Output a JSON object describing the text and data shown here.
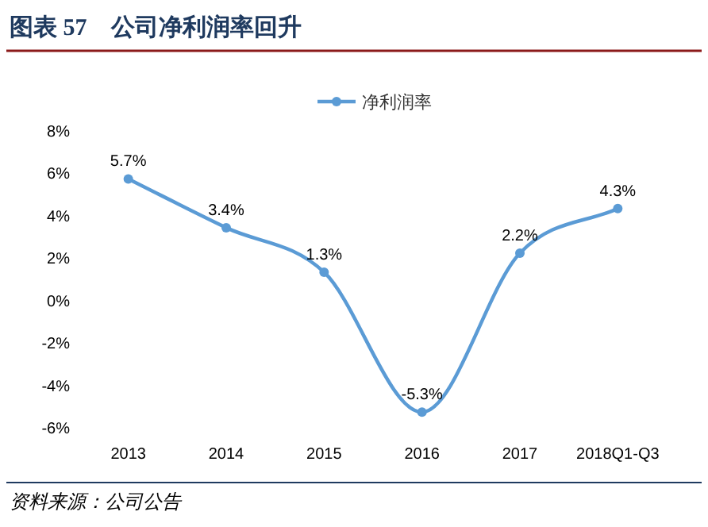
{
  "chart_data": {
    "type": "line",
    "title": "图表 57　公司净利润率回升",
    "categories": [
      "2013",
      "2014",
      "2015",
      "2016",
      "2017",
      "2018Q1-Q3"
    ],
    "series": [
      {
        "name": "净利润率",
        "color": "#5b9bd5",
        "values": [
          5.7,
          3.4,
          1.3,
          -5.3,
          2.2,
          4.3
        ],
        "value_labels": [
          "5.7%",
          "3.4%",
          "1.3%",
          "-5.3%",
          "2.2%",
          "4.3%"
        ]
      }
    ],
    "ylim": [
      -6,
      8
    ],
    "yticks": [
      {
        "value": -6,
        "label": "-6%"
      },
      {
        "value": -4,
        "label": "-4%"
      },
      {
        "value": -2,
        "label": "-2%"
      },
      {
        "value": 0,
        "label": "0%"
      },
      {
        "value": 2,
        "label": "2%"
      },
      {
        "value": 4,
        "label": "4%"
      },
      {
        "value": 6,
        "label": "6%"
      },
      {
        "value": 8,
        "label": "8%"
      }
    ],
    "grid": false,
    "legend": "top",
    "marker": "circle",
    "line_style": "solid",
    "annotations": [
      "资料来源：公司公告"
    ]
  }
}
